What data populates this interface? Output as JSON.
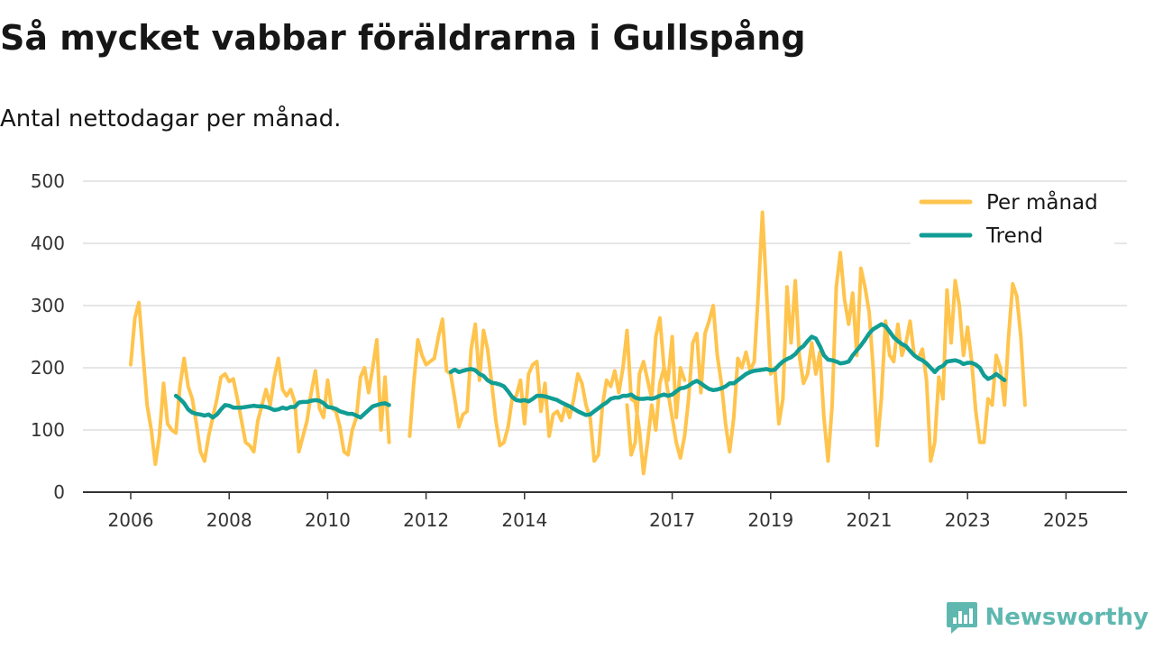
{
  "title": "Så mycket vabbar föräldrarna i Gullspång",
  "subtitle": "Antal nettodagar per månad.",
  "brand": "Newsworthy",
  "colors": {
    "monthly": "#FFC44D",
    "trend": "#119D94",
    "grid": "#dddddd",
    "axis": "#333333",
    "brand": "#5FB8B0"
  },
  "chart_data": {
    "type": "line",
    "title": "Så mycket vabbar föräldrarna i Gullspång",
    "ylabel": "",
    "xlabel": "",
    "ylim": [
      0,
      500
    ],
    "yticks": [
      0,
      100,
      200,
      300,
      400,
      500
    ],
    "xticks": [
      "2006",
      "2008",
      "2010",
      "2012",
      "2014",
      "2017",
      "2019",
      "2021",
      "2023",
      "2025"
    ],
    "legend": {
      "position": "top-right",
      "entries": [
        "Per månad",
        "Trend"
      ]
    },
    "series": [
      {
        "name": "Per månad",
        "segments": [
          {
            "start": "2006-01",
            "values": [
              205,
              280,
              305,
              220,
              140,
              100,
              45,
              90,
              175,
              110,
              100,
              95,
              170,
              215,
              170,
              150,
              110,
              65,
              50,
              90,
              120,
              150,
              185,
              190,
              178,
              182,
              150,
              115,
              80,
              75,
              65,
              115,
              140,
              165,
              140,
              185,
              215,
              165,
              155,
              165,
              145,
              65,
              90,
              115,
              160,
              195,
              135,
              120,
              180,
              135,
              130,
              105,
              65,
              60,
              100,
              120,
              185,
              200,
              160,
              200,
              245,
              100,
              185,
              80
            ]
          },
          {
            "start": "2011-09",
            "values": [
              90,
              175,
              245,
              220,
              205,
              210,
              215,
              250,
              278,
              195,
              190,
              150,
              105,
              125,
              130,
              230,
              270,
              180,
              260,
              230,
              175,
              115,
              75,
              80,
              105,
              150,
              155,
              180,
              110,
              190,
              205,
              210,
              130,
              175,
              90,
              125,
              130,
              115,
              140,
              120,
              150,
              190,
              175,
              140,
              120,
              50,
              60,
              140,
              180,
              170,
              195,
              160,
              200,
              260,
              150,
              145,
              100,
              30,
              80,
              140,
              100,
              175,
              200,
              180,
              250,
              120,
              200,
              180
            ]
          },
          {
            "start": "2016-02",
            "values": [
              140,
              60,
              80,
              190,
              210,
              180,
              150,
              250,
              280,
              200,
              160,
              120,
              80,
              55,
              90,
              150,
              240,
              255,
              160,
              255,
              275,
              300,
              220,
              175,
              110,
              65,
              120,
              215,
              200,
              225,
              195,
              210,
              320,
              450,
              320,
              190,
              200,
              110,
              150,
              330,
              240,
              340,
              220,
              175,
              190,
              240,
              190,
              225,
              120,
              50,
              140,
              330,
              385,
              310,
              270,
              320,
              220,
              360,
              330,
              290,
              200,
              75,
              150,
              275,
              220,
              210,
              270,
              220,
              240,
              275,
              220,
              215,
              230,
              180,
              50,
              80,
              185,
              150,
              325,
              240,
              340,
              300,
              220,
              265,
              210,
              130,
              80,
              80,
              150,
              140,
              220,
              200,
              140,
              250,
              335,
              315,
              250,
              140
            ]
          }
        ]
      },
      {
        "name": "Trend",
        "segments": [
          {
            "start": "2006-12",
            "values": [
              155,
              150,
              143,
              133,
              128,
              126,
              125,
              123,
              125,
              120,
              125,
              133,
              140,
              139,
              136,
              136,
              136,
              137,
              138,
              139,
              138,
              138,
              137,
              135,
              132,
              133,
              136,
              134,
              137,
              137,
              144,
              145,
              145,
              147,
              148,
              147,
              143,
              137,
              136,
              134,
              130,
              128,
              126,
              126,
              123,
              120,
              126,
              132,
              138,
              140,
              142,
              143,
              140
            ]
          },
          {
            "start": "2012-07",
            "values": [
              193,
              197,
              193,
              195,
              197,
              198,
              196,
              190,
              187,
              180,
              176,
              175,
              173,
              170,
              162,
              153,
              148,
              147,
              148,
              146,
              150,
              155,
              155,
              154,
              152,
              150,
              148,
              144,
              141,
              138,
              134,
              130,
              127,
              124,
              125,
              130,
              135,
              140,
              144,
              150,
              152,
              152,
              155,
              155,
              157,
              152,
              150,
              150,
              151,
              150,
              152,
              155,
              157,
              155,
              157,
              162,
              167,
              168,
              171,
              176,
              179,
              175,
              170,
              166,
              164,
              165,
              167,
              170,
              175,
              175,
              180,
              185,
              190,
              193,
              195,
              196,
              197,
              198,
              196,
              197,
              204,
              210,
              214,
              217,
              222,
              230,
              235,
              243,
              250,
              247,
              235,
              220,
              213,
              212,
              210,
              207,
              208,
              210,
              220,
              228,
              236,
              245,
              255,
              262,
              266,
              270,
              267,
              258,
              249,
              243,
              238,
              235,
              227,
              220,
              215,
              212,
              207,
              200,
              193,
              200,
              203,
              210,
              211,
              212,
              210,
              206,
              208,
              208,
              205,
              200,
              188,
              182,
              185,
              190,
              185,
              180
            ]
          }
        ]
      }
    ]
  }
}
